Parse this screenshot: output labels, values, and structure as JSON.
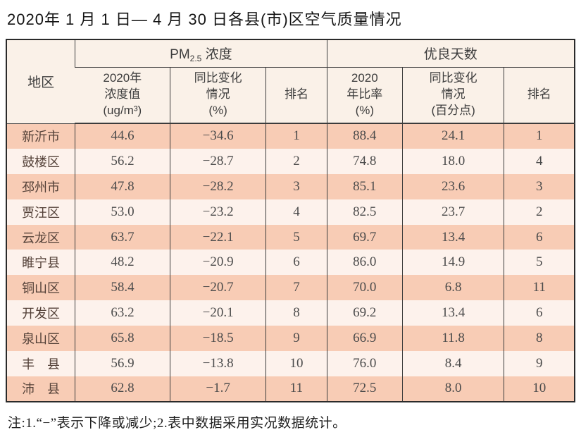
{
  "title": "2020年 1 月 1 日— 4 月 30 日各县(市)区空气质量情况",
  "table": {
    "region_header": "地区",
    "pm_group": {
      "prefix": "PM",
      "sub": "2.5",
      "suffix": " 浓度"
    },
    "good_days_header": "优良天数",
    "sub_headers": [
      "2020年\n浓度值\n(ug/m³)",
      "同比变化\n情况\n(%)",
      "排名",
      "2020\n年比率\n(%)",
      "同比变化\n情况\n(百分点)",
      "排名"
    ],
    "rows": [
      [
        "新沂市",
        "44.6",
        "−34.6",
        "1",
        "88.4",
        "24.1",
        "1"
      ],
      [
        "鼓楼区",
        "56.2",
        "−28.7",
        "2",
        "74.8",
        "18.0",
        "4"
      ],
      [
        "邳州市",
        "47.8",
        "−28.2",
        "3",
        "85.1",
        "23.6",
        "3"
      ],
      [
        "贾汪区",
        "53.0",
        "−23.2",
        "4",
        "82.5",
        "23.7",
        "2"
      ],
      [
        "云龙区",
        "63.7",
        "−22.1",
        "5",
        "69.7",
        "13.4",
        "6"
      ],
      [
        "睢宁县",
        "48.2",
        "−20.9",
        "6",
        "86.0",
        "14.9",
        "5"
      ],
      [
        "铜山区",
        "58.4",
        "−20.7",
        "7",
        "70.0",
        "6.8",
        "11"
      ],
      [
        "开发区",
        "63.2",
        "−20.1",
        "8",
        "69.2",
        "13.4",
        "6"
      ],
      [
        "泉山区",
        "65.8",
        "−18.5",
        "9",
        "66.9",
        "11.8",
        "8"
      ],
      [
        "丰　县",
        "56.9",
        "−13.8",
        "10",
        "76.0",
        "8.4",
        "9"
      ],
      [
        "沛　县",
        "62.8",
        "−1.7",
        "11",
        "72.5",
        "8.0",
        "10"
      ]
    ]
  },
  "footnote": "注:1.“−”表示下降或减少;2.表中数据采用实况数据统计。",
  "colors": {
    "header_bg": "#faf1e8",
    "odd_row_bg": "#f8ccb5",
    "even_row_bg": "#fdf2ec",
    "grid_line": "#3c3c3c",
    "outer_border": "#2a2a2a",
    "region_text": "#544138",
    "value_text": "#4b4b4b"
  }
}
